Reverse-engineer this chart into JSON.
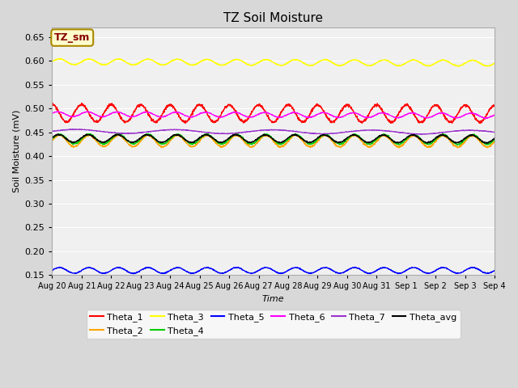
{
  "title": "TZ Soil Moisture",
  "xlabel": "Time",
  "ylabel": "Soil Moisture (mV)",
  "ylim": [
    0.15,
    0.67
  ],
  "yticks": [
    0.15,
    0.2,
    0.25,
    0.3,
    0.35,
    0.4,
    0.45,
    0.5,
    0.55,
    0.6,
    0.65
  ],
  "n_points": 2160,
  "days": 15,
  "series": {
    "Theta_1": {
      "color": "#FF0000",
      "base": 0.49,
      "amp": 0.018,
      "freq": 1.0,
      "trend": -0.001,
      "phase": 1.5708
    },
    "Theta_2": {
      "color": "#FFA500",
      "base": 0.432,
      "amp": 0.012,
      "freq": 1.0,
      "trend": -0.001,
      "phase": 0.0
    },
    "Theta_3": {
      "color": "#FFFF00",
      "base": 0.598,
      "amp": 0.006,
      "freq": 1.0,
      "trend": -0.003,
      "phase": 0.0
    },
    "Theta_4": {
      "color": "#00CC00",
      "base": 0.436,
      "amp": 0.01,
      "freq": 1.0,
      "trend": -0.001,
      "phase": 0.0
    },
    "Theta_5": {
      "color": "#0000FF",
      "base": 0.16,
      "amp": 0.006,
      "freq": 1.0,
      "trend": 0.0,
      "phase": 0.0
    },
    "Theta_6": {
      "color": "#FF00FF",
      "base": 0.488,
      "amp": 0.005,
      "freq": 1.0,
      "trend": -0.003,
      "phase": 0.3
    },
    "Theta_7": {
      "color": "#9933CC",
      "base": 0.452,
      "amp": 0.004,
      "freq": 0.3,
      "trend": -0.002,
      "phase": 0.0
    },
    "Theta_avg": {
      "color": "#000000",
      "base": 0.437,
      "amp": 0.008,
      "freq": 1.0,
      "trend": -0.001,
      "phase": 0.2
    }
  },
  "xtick_labels": [
    "Aug 20",
    "Aug 21",
    "Aug 22",
    "Aug 23",
    "Aug 24",
    "Aug 25",
    "Aug 26",
    "Aug 27",
    "Aug 28",
    "Aug 29",
    "Aug 30",
    "Aug 31",
    "Sep 1",
    "Sep 2",
    "Sep 3",
    "Sep 4"
  ],
  "figure_bg": "#D8D8D8",
  "plot_bg": "#F0F0F0",
  "grid_color": "#FFFFFF",
  "label_box_text": "TZ_sm",
  "label_box_bg": "#FFFFCC",
  "label_box_fg": "#880000",
  "label_box_edge": "#AA8800"
}
